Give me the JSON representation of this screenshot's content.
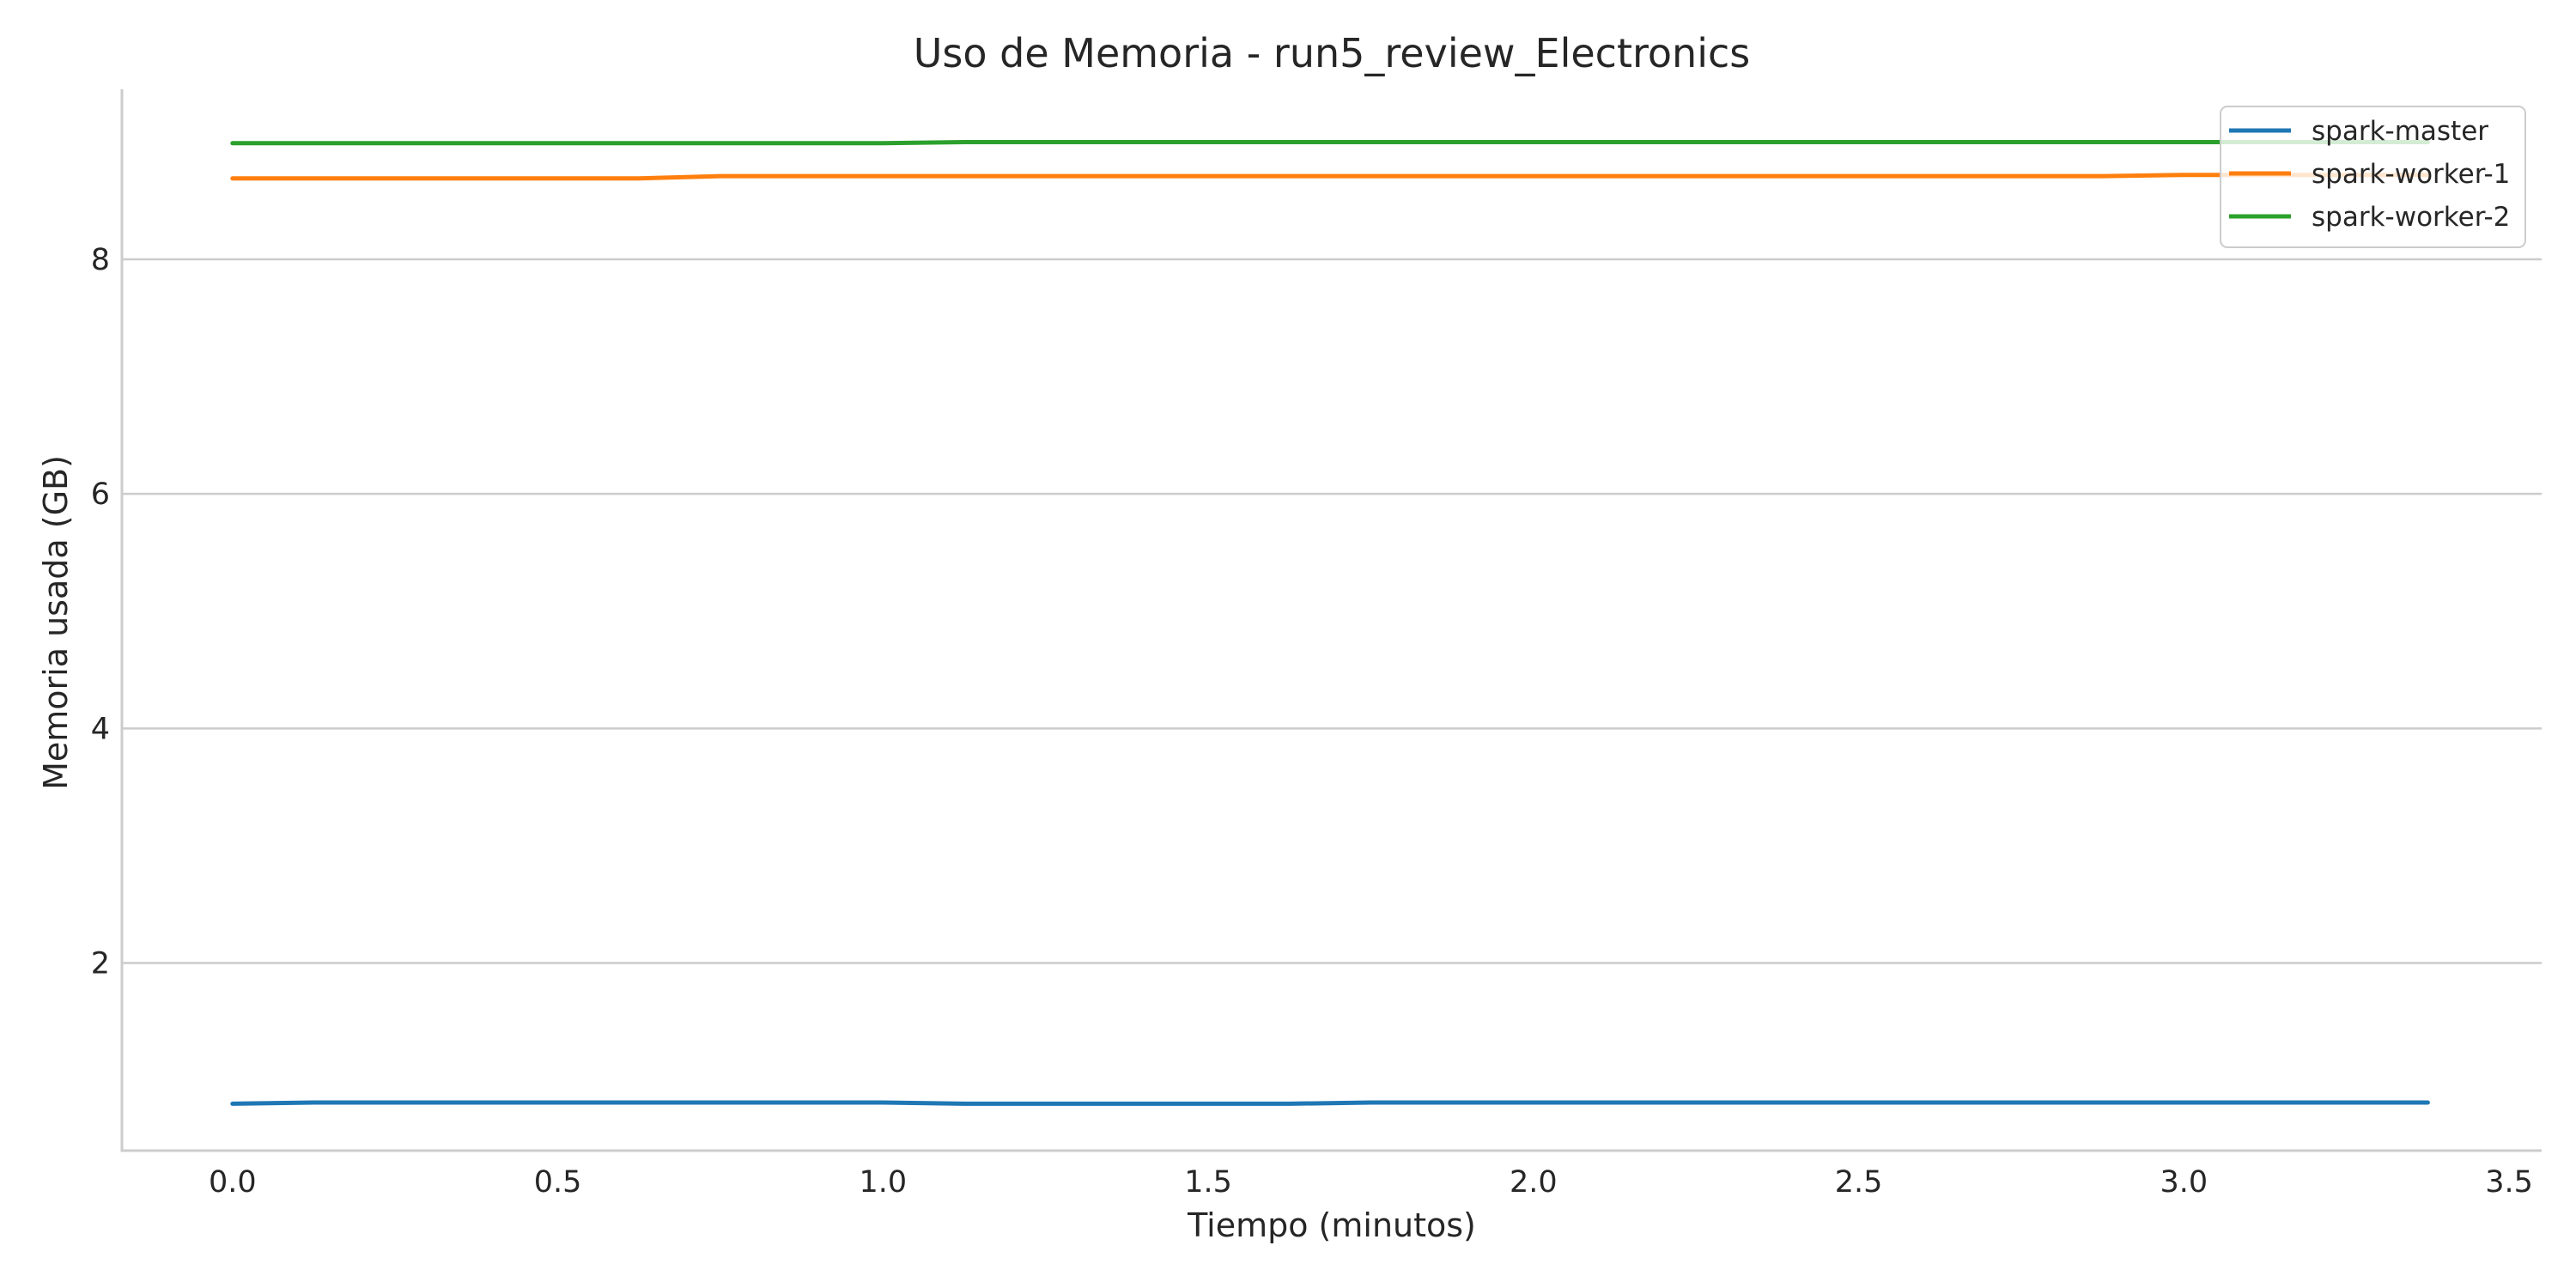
{
  "chart_data": {
    "type": "line",
    "title": "Uso de Memoria - run5_review_Electronics",
    "xlabel": "Tiempo (minutos)",
    "ylabel": "Memoria usada (GB)",
    "xlim": [
      -0.17,
      3.55
    ],
    "ylim": [
      0.4,
      9.45
    ],
    "xticks": [
      0.0,
      0.5,
      1.0,
      1.5,
      2.0,
      2.5,
      3.0,
      3.5
    ],
    "xtick_labels": [
      "0.0",
      "0.5",
      "1.0",
      "1.5",
      "2.0",
      "2.5",
      "3.0",
      "3.5"
    ],
    "yticks": [
      2,
      4,
      6,
      8
    ],
    "ytick_labels": [
      "2",
      "4",
      "6",
      "8"
    ],
    "grid": "horizontal",
    "legend_position": "top-right",
    "series": [
      {
        "name": "spark-master",
        "color": "#1f77b4",
        "x": [
          0.0,
          0.125,
          0.25,
          0.375,
          0.5,
          0.625,
          0.75,
          0.875,
          1.0,
          1.125,
          1.25,
          1.375,
          1.5,
          1.625,
          1.75,
          1.875,
          2.0,
          2.125,
          2.25,
          2.375,
          2.5,
          2.625,
          2.75,
          2.875,
          3.0,
          3.125,
          3.25,
          3.375
        ],
        "y": [
          0.8,
          0.81,
          0.81,
          0.81,
          0.81,
          0.81,
          0.81,
          0.81,
          0.81,
          0.8,
          0.8,
          0.8,
          0.8,
          0.8,
          0.81,
          0.81,
          0.81,
          0.81,
          0.81,
          0.81,
          0.81,
          0.81,
          0.81,
          0.81,
          0.81,
          0.81,
          0.81,
          0.81
        ]
      },
      {
        "name": "spark-worker-1",
        "color": "#ff7f0e",
        "x": [
          0.0,
          0.125,
          0.25,
          0.375,
          0.5,
          0.625,
          0.75,
          0.875,
          1.0,
          1.125,
          1.25,
          1.375,
          1.5,
          1.625,
          1.75,
          1.875,
          2.0,
          2.125,
          2.25,
          2.375,
          2.5,
          2.625,
          2.75,
          2.875,
          3.0,
          3.125,
          3.25,
          3.375
        ],
        "y": [
          8.69,
          8.69,
          8.69,
          8.69,
          8.69,
          8.69,
          8.71,
          8.71,
          8.71,
          8.71,
          8.71,
          8.71,
          8.71,
          8.71,
          8.71,
          8.71,
          8.71,
          8.71,
          8.71,
          8.71,
          8.71,
          8.71,
          8.71,
          8.71,
          8.72,
          8.72,
          8.72,
          8.72
        ]
      },
      {
        "name": "spark-worker-2",
        "color": "#2ca02c",
        "x": [
          0.0,
          0.125,
          0.25,
          0.375,
          0.5,
          0.625,
          0.75,
          0.875,
          1.0,
          1.125,
          1.25,
          1.375,
          1.5,
          1.625,
          1.75,
          1.875,
          2.0,
          2.125,
          2.25,
          2.375,
          2.5,
          2.625,
          2.75,
          2.875,
          3.0,
          3.125,
          3.25,
          3.375
        ],
        "y": [
          8.99,
          8.99,
          8.99,
          8.99,
          8.99,
          8.99,
          8.99,
          8.99,
          8.99,
          9.0,
          9.0,
          9.0,
          9.0,
          9.0,
          9.0,
          9.0,
          9.0,
          9.0,
          9.0,
          9.0,
          9.0,
          9.0,
          9.0,
          9.0,
          9.0,
          9.0,
          9.0,
          9.0
        ]
      }
    ]
  }
}
